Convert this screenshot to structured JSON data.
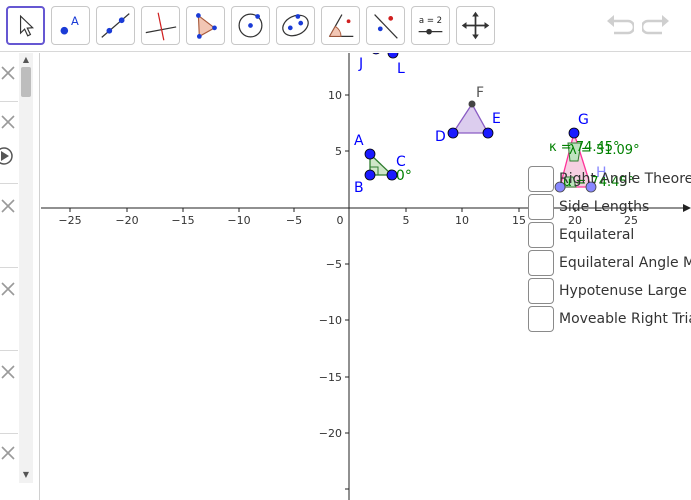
{
  "toolbar": {
    "tools": [
      {
        "name": "move-tool",
        "icon": "arrow-cursor-icon"
      },
      {
        "name": "point-tool",
        "icon": "point-icon",
        "label": "A"
      },
      {
        "name": "line-tool",
        "icon": "line-through-two-points-icon"
      },
      {
        "name": "perpendicular-line-tool",
        "icon": "perpendicular-line-icon"
      },
      {
        "name": "polygon-tool",
        "icon": "polygon-icon"
      },
      {
        "name": "circle-tool",
        "icon": "circle-center-point-icon"
      },
      {
        "name": "ellipse-tool",
        "icon": "ellipse-icon"
      },
      {
        "name": "angle-tool",
        "icon": "angle-icon"
      },
      {
        "name": "reflect-tool",
        "icon": "reflect-about-line-icon"
      },
      {
        "name": "slider-tool",
        "icon": "slider-icon",
        "label": "a = 2"
      },
      {
        "name": "move-graphics-view-tool",
        "icon": "move-arrows-icon"
      }
    ],
    "undo_icon": "undo-icon",
    "redo_icon": "redo-icon"
  },
  "axes": {
    "x_ticks": [
      "−25",
      "−20",
      "−15",
      "−10",
      "−5",
      "0",
      "5",
      "10",
      "15",
      "20",
      "25"
    ],
    "y_ticks": [
      "10",
      "5",
      "−5",
      "−10",
      "−15",
      "−20"
    ]
  },
  "points": {
    "A": "A",
    "B": "B",
    "C": "C",
    "D": "D",
    "E": "E",
    "F": "F",
    "G": "G",
    "H": "H",
    "I": "I",
    "J": "J",
    "L": "L"
  },
  "angles": {
    "right_angle": "90°",
    "kappa": "κ = 74.45°",
    "lambda": "λ = 31.09°",
    "mu": "μ = 74.45°"
  },
  "checkboxes": [
    {
      "label": "Right Angle Theorem",
      "checked": false
    },
    {
      "label": "Side Lengths",
      "checked": false
    },
    {
      "label": "Equilateral",
      "checked": false
    },
    {
      "label": "Equilateral Angle Measures",
      "checked": false
    },
    {
      "label": "Hypotenuse Large",
      "checked": false
    },
    {
      "label": "Moveable Right Triangle",
      "checked": false
    }
  ],
  "colors": {
    "accent": "#6557d2",
    "point_blue": "#0000ff",
    "angle_green": "#008000",
    "triangle_purple": "#9966cc",
    "triangle_pink": "#ff3399"
  }
}
